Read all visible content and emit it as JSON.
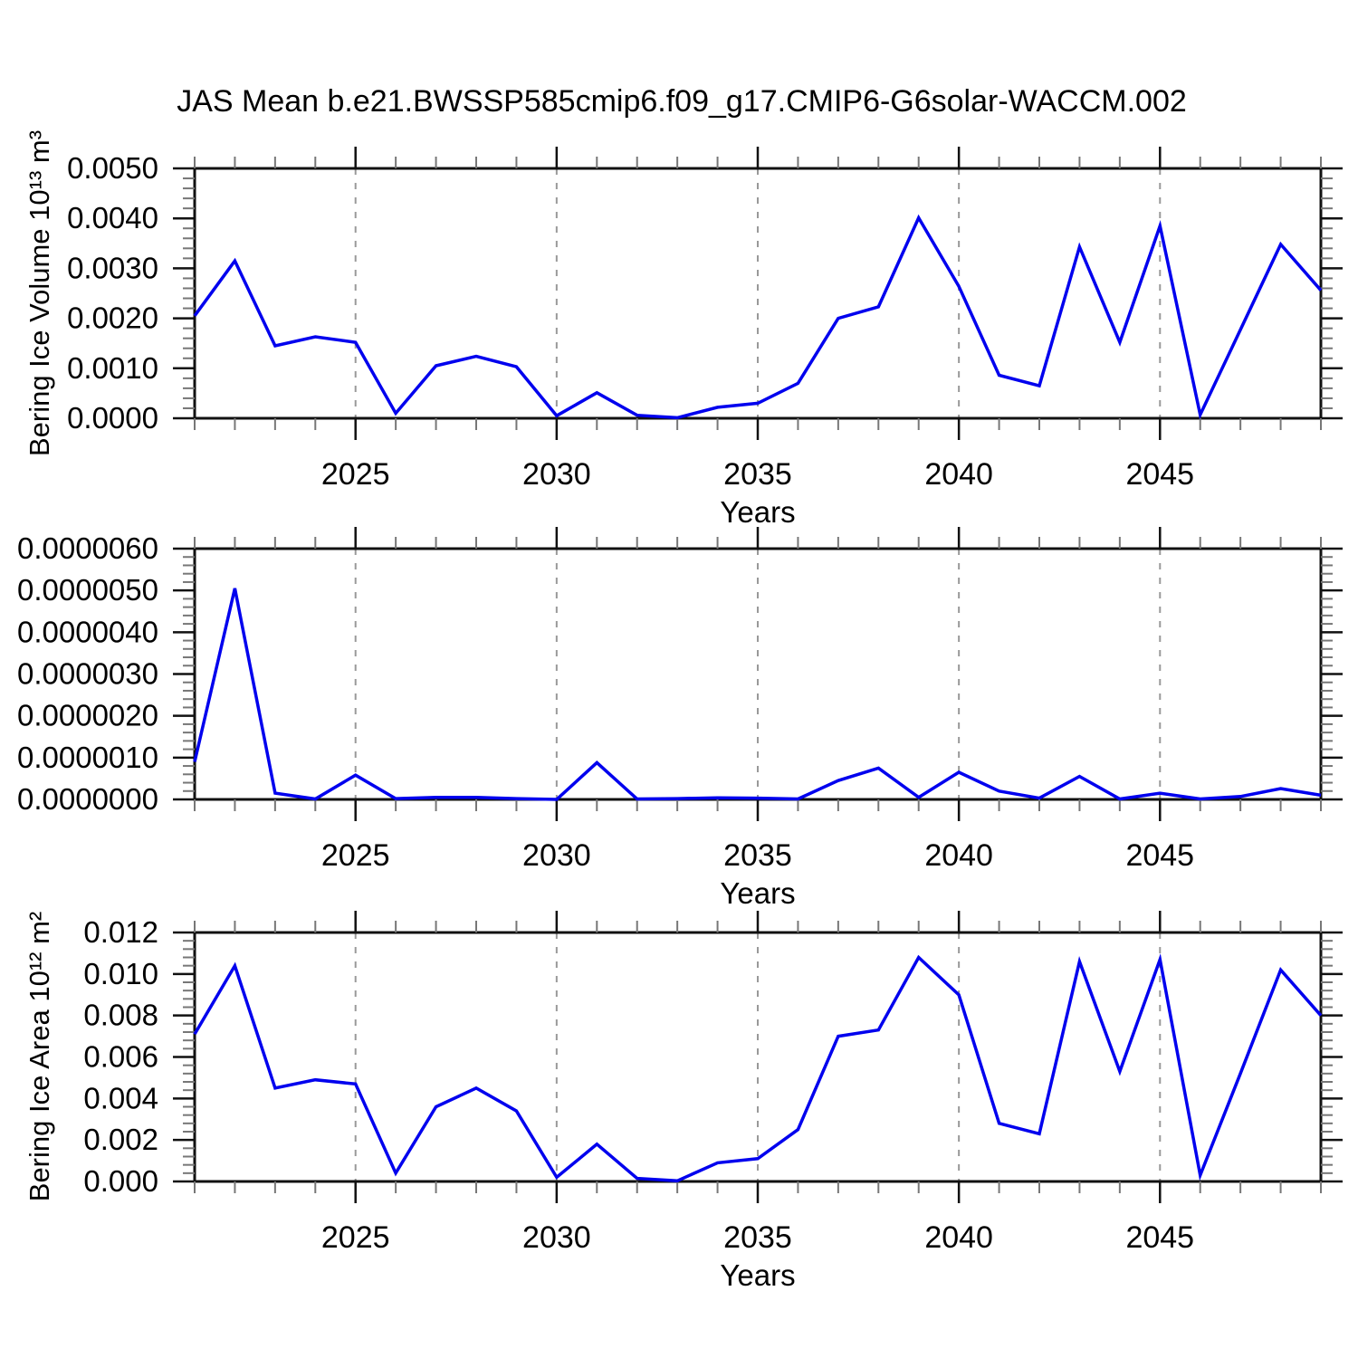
{
  "title": "JAS Mean b.e21.BWSSP585cmip6.f09_g17.CMIP6-G6solar-WACCM.002",
  "colors": {
    "line": "#0000ee",
    "axis": "#111111",
    "minor_tick": "#777777",
    "grid_dash": "#999999",
    "text": "#000000",
    "background": "#ffffff"
  },
  "chart_data": [
    {
      "type": "line",
      "panel": "bering-ice-volume",
      "xlabel": "Years",
      "ylabel": "Bering Ice Volume 10¹³ m³",
      "x": [
        2021,
        2022,
        2023,
        2024,
        2025,
        2026,
        2027,
        2028,
        2029,
        2030,
        2031,
        2032,
        2033,
        2034,
        2035,
        2036,
        2037,
        2038,
        2039,
        2040,
        2041,
        2042,
        2043,
        2044,
        2045,
        2046,
        2047,
        2048,
        2049
      ],
      "values": [
        0.00205,
        0.00315,
        0.00145,
        0.00163,
        0.00152,
        0.0001,
        0.00105,
        0.00124,
        0.00103,
        5e-05,
        0.00051,
        6e-05,
        1e-05,
        0.00022,
        0.0003,
        0.0007,
        0.002,
        0.00223,
        0.00401,
        0.00264,
        0.00086,
        0.00065,
        0.00343,
        0.00152,
        0.00385,
        7e-05,
        0.00177,
        0.00348,
        0.00256
      ],
      "xlim": [
        2021,
        2049
      ],
      "ylim": [
        0.0,
        0.005
      ],
      "xticks": [
        2025,
        2030,
        2035,
        2040,
        2045
      ],
      "ytick_step": 0.001,
      "ytick_decimals": 4,
      "x_minor_every": 1,
      "y_minor_per_major": 5,
      "grid": "vertical-dashed-at-major-xticks",
      "legend": "none"
    },
    {
      "type": "line",
      "panel": "middle-unlabeled",
      "xlabel": "Years",
      "ylabel": "",
      "x": [
        2021,
        2022,
        2023,
        2024,
        2025,
        2026,
        2027,
        2028,
        2029,
        2030,
        2031,
        2032,
        2033,
        2034,
        2035,
        2036,
        2037,
        2038,
        2039,
        2040,
        2041,
        2042,
        2043,
        2044,
        2045,
        2046,
        2047,
        2048,
        2049
      ],
      "values": [
        9e-07,
        5.05e-06,
        1.5e-07,
        1e-08,
        5.8e-07,
        2e-08,
        5e-08,
        5e-08,
        2e-08,
        0.0,
        8.8e-07,
        1e-08,
        2e-08,
        4e-08,
        3e-08,
        1e-08,
        4.5e-07,
        7.5e-07,
        5e-08,
        6.5e-07,
        2e-07,
        3e-08,
        5.5e-07,
        1e-08,
        1.5e-07,
        1e-08,
        7e-08,
        2.6e-07,
        1e-07
      ],
      "xlim": [
        2021,
        2049
      ],
      "ylim": [
        0.0,
        6e-06
      ],
      "xticks": [
        2025,
        2030,
        2035,
        2040,
        2045
      ],
      "ytick_step": 1e-06,
      "ytick_decimals": 7,
      "x_minor_every": 1,
      "y_minor_per_major": 5,
      "grid": "vertical-dashed-at-major-xticks",
      "legend": "none"
    },
    {
      "type": "line",
      "panel": "bering-ice-area",
      "xlabel": "Years",
      "ylabel": "Bering Ice Area 10¹² m²",
      "x": [
        2021,
        2022,
        2023,
        2024,
        2025,
        2026,
        2027,
        2028,
        2029,
        2030,
        2031,
        2032,
        2033,
        2034,
        2035,
        2036,
        2037,
        2038,
        2039,
        2040,
        2041,
        2042,
        2043,
        2044,
        2045,
        2046,
        2047,
        2048,
        2049
      ],
      "values": [
        0.0071,
        0.0104,
        0.0045,
        0.0049,
        0.0047,
        0.0004,
        0.0036,
        0.0045,
        0.0034,
        0.0002,
        0.0018,
        0.00015,
        3e-05,
        0.0009,
        0.0011,
        0.0025,
        0.007,
        0.0073,
        0.0108,
        0.009,
        0.0028,
        0.0023,
        0.0106,
        0.0053,
        0.0107,
        0.0003,
        0.0052,
        0.0102,
        0.008
      ],
      "xlim": [
        2021,
        2049
      ],
      "ylim": [
        0.0,
        0.012
      ],
      "xticks": [
        2025,
        2030,
        2035,
        2040,
        2045
      ],
      "ytick_step": 0.002,
      "ytick_decimals": 3,
      "x_minor_every": 1,
      "y_minor_per_major": 5,
      "grid": "vertical-dashed-at-major-xticks",
      "legend": "none"
    }
  ]
}
